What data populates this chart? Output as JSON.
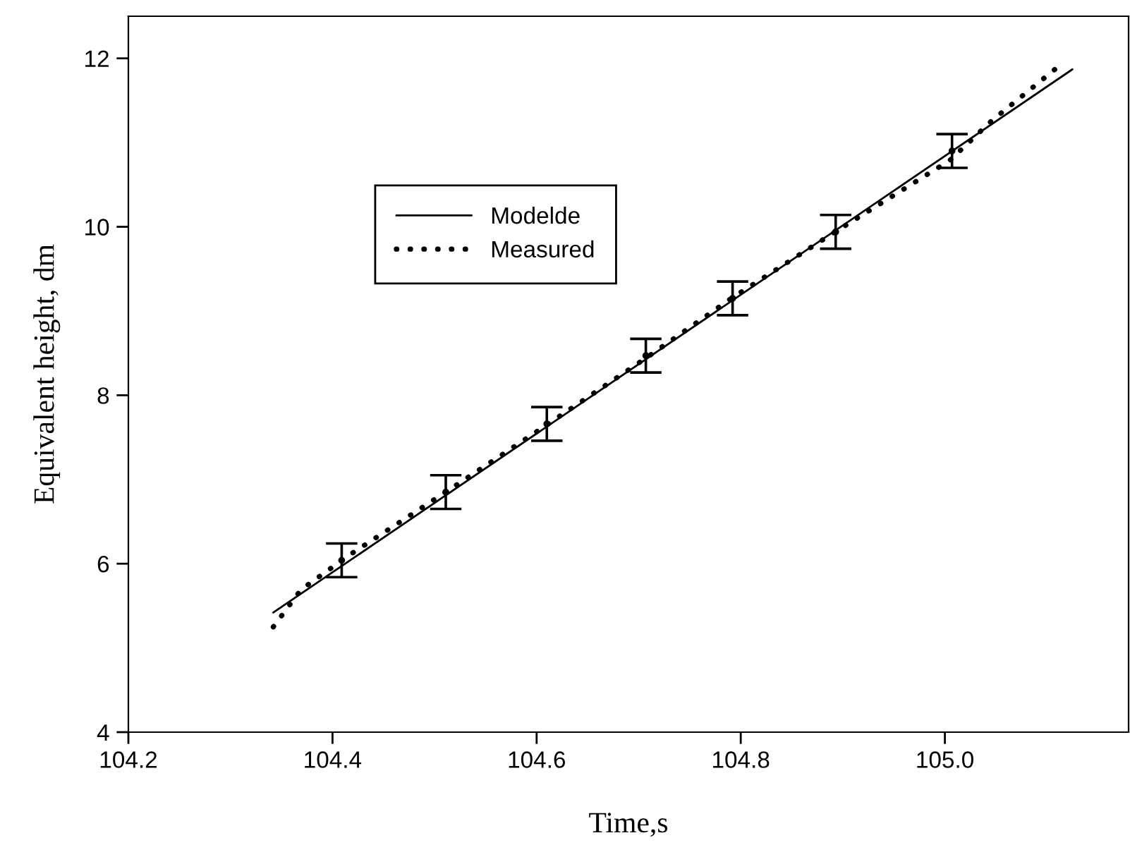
{
  "chart_data": {
    "type": "line",
    "xlabel": "Time,s",
    "ylabel": "Equivalent height, dm",
    "xlim": [
      104.2,
      105.18
    ],
    "xticks": [
      {
        "value": 104.2,
        "label": "104.2"
      },
      {
        "value": 104.4,
        "label": "104.4"
      },
      {
        "value": 104.6,
        "label": "104.6"
      },
      {
        "value": 104.8,
        "label": "104.8"
      },
      {
        "value": 105.0,
        "label": "105.0"
      }
    ],
    "ylim": [
      4,
      12.5
    ],
    "yticks": [
      4,
      6,
      8,
      10,
      12
    ],
    "grid": false,
    "legend": "top left",
    "series": [
      {
        "name": "Modelde",
        "color": "#000000",
        "line_style": "solid",
        "x": [
          104.342,
          105.125
        ],
        "values": [
          5.42,
          11.87
        ]
      },
      {
        "name": "Measured",
        "color": "#000000",
        "line_style": "dotted",
        "x": [
          104.342,
          104.369,
          104.415,
          104.511,
          104.604,
          104.707,
          104.792,
          104.89,
          105.005,
          105.046,
          105.114
        ],
        "values": [
          5.25,
          5.69,
          6.09,
          6.85,
          7.6,
          8.44,
          9.16,
          9.92,
          10.79,
          11.26,
          11.93
        ]
      },
      {
        "type": "scatter",
        "marker": "circle",
        "color": "#000000",
        "x": [
          104.409,
          104.511,
          104.61,
          104.707,
          104.792,
          104.893,
          105.007
        ],
        "values": [
          6.04,
          6.85,
          7.66,
          8.47,
          9.15,
          9.94,
          10.9
        ],
        "errors": [
          0.2,
          0.2,
          0.2,
          0.2,
          0.2,
          0.2,
          0.2
        ]
      }
    ]
  }
}
